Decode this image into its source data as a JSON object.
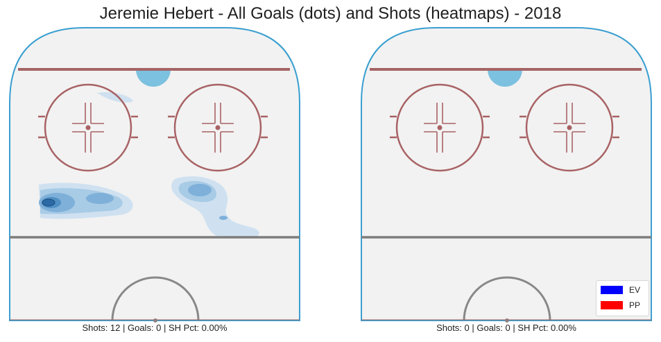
{
  "chart_data": [
    {
      "type": "heatmap",
      "title": "Jeremie Hebert - All Goals (dots) and Shots (heatmaps) - 2018",
      "caption": "Shots: 12 | Goals: 0 | SH Pct: 0.00%",
      "shots": 12,
      "goals": 0,
      "sh_pct": "0.00%",
      "heatmap_colors": [
        "#cfe1f0",
        "#a8cbe6",
        "#7eb0d9",
        "#4f8fc4",
        "#2b6aa5"
      ]
    },
    {
      "type": "heatmap",
      "caption": "Shots: 0 | Goals: 0 | SH Pct: 0.00%",
      "shots": 0,
      "goals": 0,
      "sh_pct": "0.00%"
    }
  ],
  "legend": {
    "placement": "bottom-right",
    "entries": [
      {
        "label": "EV",
        "color": "#0000ff"
      },
      {
        "label": "PP",
        "color": "#ff0000"
      }
    ]
  },
  "colors": {
    "rink_fill": "#f2f2f2",
    "boards": "#3a9fd0",
    "goal_line": "#a56466",
    "circles": "#a86264",
    "crease": "#7cc1e0",
    "blue_line": "#7d7d7d",
    "center_circle": "#888888"
  }
}
